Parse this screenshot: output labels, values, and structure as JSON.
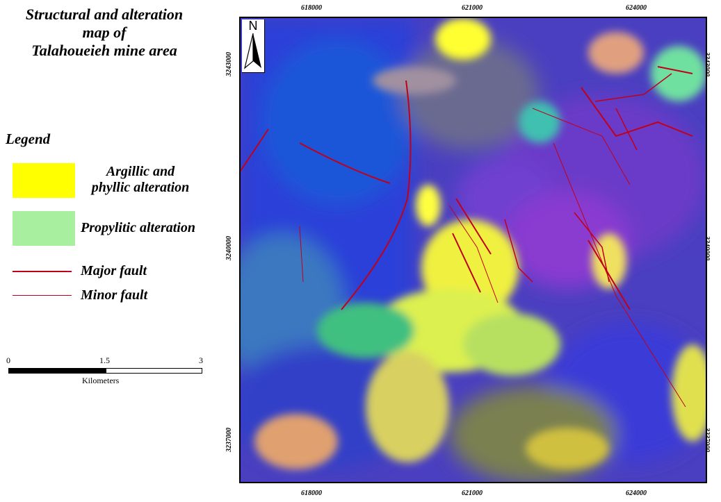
{
  "title": {
    "line1": "Structural and alteration",
    "line2": "map of",
    "line3": "Talahoueieh mine area"
  },
  "legend": {
    "heading": "Legend",
    "argillic_line1": "Argillic and",
    "argillic_line2": "phyllic alteration",
    "argillic_color": "#ffff00",
    "propylitic": "Propylitic alteration",
    "propylitic_color": "#a8f0a0",
    "major_fault": "Major fault",
    "major_fault_color": "#c0001a",
    "minor_fault": "Minor fault",
    "minor_fault_color": "#c0001a"
  },
  "scale": {
    "start": "0",
    "mid": "1.5",
    "end": "3",
    "unit": "Kilometers"
  },
  "north_label": "N",
  "grid": {
    "eastings": [
      "618000",
      "621000",
      "624000"
    ],
    "northings": [
      "3243000",
      "3240000",
      "3237000"
    ]
  }
}
